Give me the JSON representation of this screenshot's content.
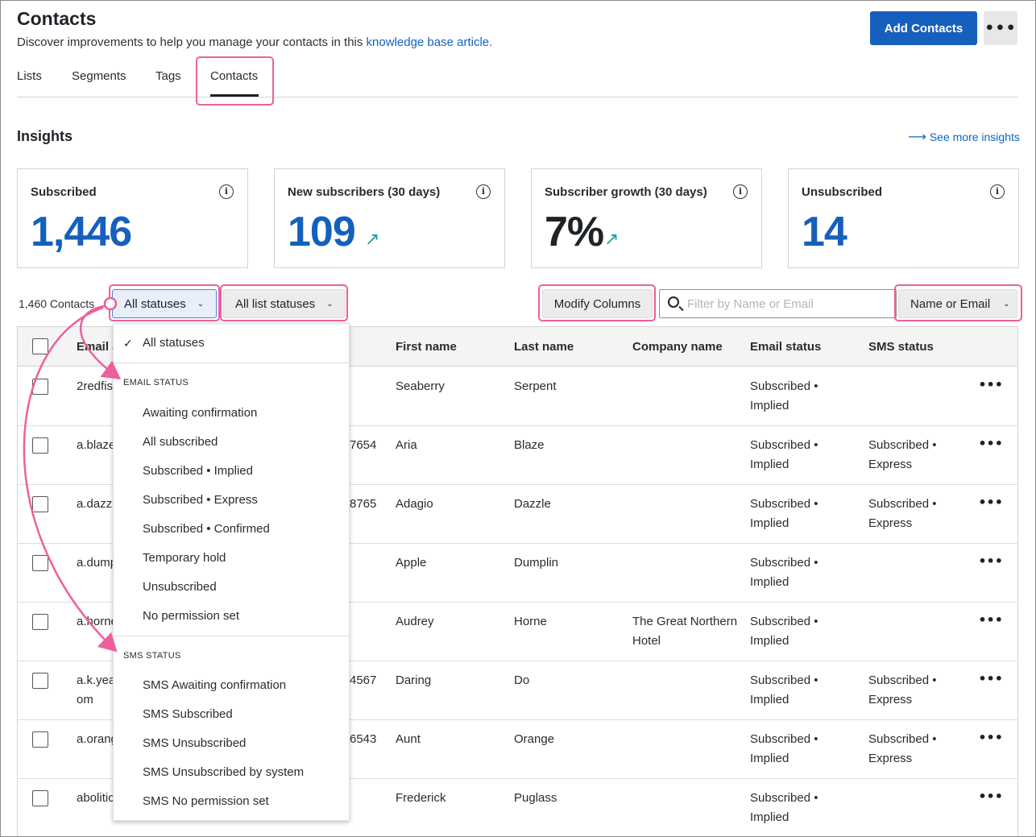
{
  "header": {
    "title": "Contacts",
    "subtitle": "Discover improvements to help you manage your contacts in this ",
    "subtitle_link": "knowledge base article.",
    "add_button": "Add Contacts",
    "more_button": "•••"
  },
  "tabs": [
    {
      "label": "Lists"
    },
    {
      "label": "Segments"
    },
    {
      "label": "Tags"
    },
    {
      "label": "Contacts",
      "active": true
    }
  ],
  "insights": {
    "title": "Insights",
    "see_more": "See more insights",
    "cards": [
      {
        "label": "Subscribed",
        "value": "1,446"
      },
      {
        "label": "New subscribers (30 days)",
        "value": "109",
        "trend": "up"
      },
      {
        "label": "Subscriber growth (30 days)",
        "value": "7%",
        "trend": "up"
      },
      {
        "label": "Unsubscribed",
        "value": "14"
      }
    ]
  },
  "toolbar": {
    "count": "1,460 Contacts",
    "status_filter": "All statuses",
    "list_filter": "All list statuses",
    "modify_columns": "Modify Columns",
    "search_placeholder": "Filter by Name or Email",
    "search_type": "Name or Email"
  },
  "table": {
    "headers": [
      "Email a",
      "First name",
      "Last name",
      "Company name",
      "Email status",
      "SMS status"
    ],
    "rows": [
      {
        "email": "2redfis",
        "phone": "",
        "first": "Seaberry",
        "last": "Serpent",
        "company": "",
        "email_status": [
          "Subscribed •",
          "Implied"
        ],
        "sms_status": []
      },
      {
        "email": "a.blaze",
        "phone": "7654",
        "first": "Aria",
        "last": "Blaze",
        "company": "",
        "email_status": [
          "Subscribed •",
          "Implied"
        ],
        "sms_status": [
          "Subscribed •",
          "Express"
        ]
      },
      {
        "email": "a.dazzl",
        "phone": "8765",
        "first": "Adagio",
        "last": "Dazzle",
        "company": "",
        "email_status": [
          "Subscribed •",
          "Implied"
        ],
        "sms_status": [
          "Subscribed •",
          "Express"
        ]
      },
      {
        "email": "a.dump",
        "phone": "",
        "first": "Apple",
        "last": "Dumplin",
        "company": "",
        "email_status": [
          "Subscribed •",
          "Implied"
        ],
        "sms_status": []
      },
      {
        "email": "a.horne",
        "phone": "",
        "first": "Audrey",
        "last": "Horne",
        "company": [
          "The Great Northern",
          "Hotel"
        ],
        "email_status": [
          "Subscribed •",
          "Implied"
        ],
        "sms_status": []
      },
      {
        "email": "a.k.yea",
        "email2": "om",
        "phone": "4567",
        "first": "Daring",
        "last": "Do",
        "company": "",
        "email_status": [
          "Subscribed •",
          "Implied"
        ],
        "sms_status": [
          "Subscribed •",
          "Express"
        ]
      },
      {
        "email": "a.orang",
        "phone": "6543",
        "first": "Aunt",
        "last": "Orange",
        "company": "",
        "email_status": [
          "Subscribed •",
          "Implied"
        ],
        "sms_status": [
          "Subscribed •",
          "Express"
        ]
      },
      {
        "email": "abolitic",
        "phone": "",
        "first": "Frederick",
        "last": "Puglass",
        "company": "",
        "email_status": [
          "Subscribed •",
          "Implied"
        ],
        "sms_status": []
      }
    ]
  },
  "dropdown": {
    "selected": "All statuses",
    "email_section": "EMAIL STATUS",
    "email_items": [
      "Awaiting confirmation",
      "All subscribed",
      "Subscribed • Implied",
      "Subscribed • Express",
      "Subscribed • Confirmed",
      "Temporary hold",
      "Unsubscribed",
      "No permission set"
    ],
    "sms_section": "SMS STATUS",
    "sms_items": [
      "SMS Awaiting confirmation",
      "SMS Subscribed",
      "SMS Unsubscribed",
      "SMS Unsubscribed by system",
      "SMS No permission set"
    ]
  },
  "colors": {
    "brand_blue": "#1560bd",
    "highlight_pink": "#ee5f9d",
    "trend_teal": "#17a2a0"
  }
}
